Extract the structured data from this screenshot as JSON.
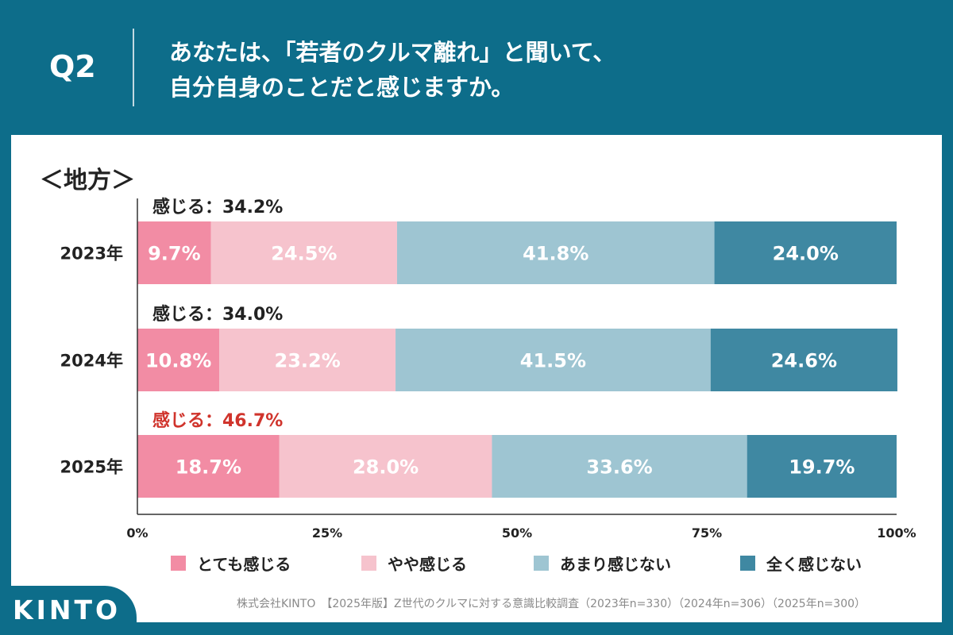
{
  "header": {
    "question": "Q2",
    "line1": "あなたは、「若者のクルマ離れ」と聞いて、",
    "line2": "自分自身のことだと感じますか。"
  },
  "section_title": "＜地方＞",
  "colors": {
    "background": "#0d6d8a",
    "series": [
      "#f28ca4",
      "#f6c3cd",
      "#9ec5d2",
      "#3f88a2"
    ],
    "highlight": "#d0342c"
  },
  "chart_data": {
    "type": "bar",
    "orientation": "horizontal",
    "stacked": true,
    "percent": true,
    "categories": [
      "2023年",
      "2024年",
      "2025年"
    ],
    "series": [
      {
        "name": "とても感じる",
        "values": [
          9.7,
          10.8,
          18.7
        ]
      },
      {
        "name": "やや感じる",
        "values": [
          24.5,
          23.2,
          28.0
        ]
      },
      {
        "name": "あまり感じない",
        "values": [
          41.8,
          41.5,
          33.6
        ]
      },
      {
        "name": "全く感じない",
        "values": [
          24.0,
          24.6,
          19.7
        ]
      }
    ],
    "annotations": [
      {
        "text": "感じる：34.2%",
        "category": "2023年",
        "highlight": false
      },
      {
        "text": "感じる：34.0%",
        "category": "2024年",
        "highlight": false
      },
      {
        "text": "感じる：46.7%",
        "category": "2025年",
        "highlight": true
      }
    ],
    "xlim": [
      0,
      100
    ],
    "xticks": [
      "0%",
      "25%",
      "50%",
      "75%",
      "100%"
    ],
    "legend_position": "bottom"
  },
  "source": "株式会社KINTO　【2025年版】Z世代のクルマに対する意識比較調査（2023年n=330）（2024年n=306）（2025年n=300）",
  "logo": "KINTO"
}
